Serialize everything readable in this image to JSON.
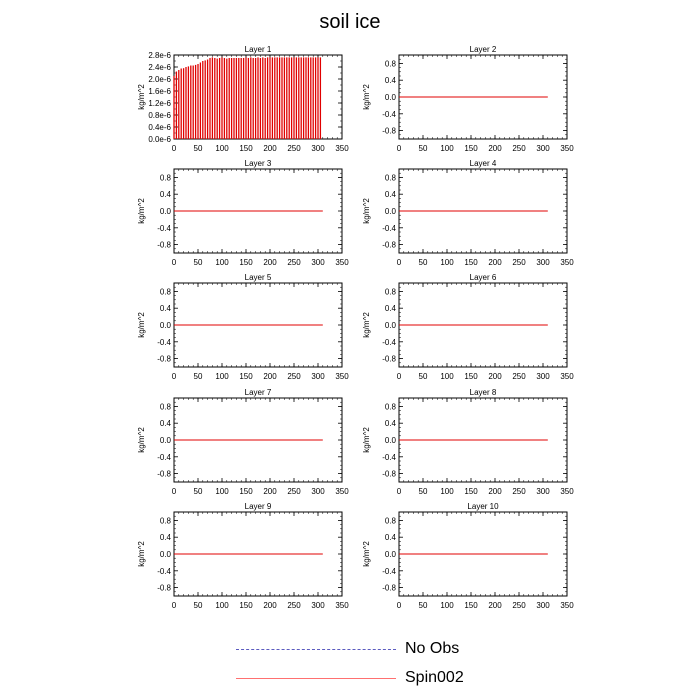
{
  "figure": {
    "title": "soil ice",
    "legend": [
      {
        "label": "No Obs",
        "color": "#5b5bc0",
        "style": "dashed"
      },
      {
        "label": "Spin002",
        "color": "#ff4040",
        "style": "solid"
      }
    ]
  },
  "chart_data": [
    {
      "type": "bar",
      "title": "Layer 1",
      "ylabel": "kg/m^2",
      "xlim": [
        0,
        350
      ],
      "ylim": [
        0.0,
        2.8e-06
      ],
      "xticks": [
        "0",
        "50",
        "100",
        "150",
        "200",
        "250",
        "300",
        "350"
      ],
      "yticks": [
        "0.0e-6",
        "0.4e-6",
        "0.8e-6",
        "1.2e-6",
        "1.6e-6",
        "2.0e-6",
        "2.4e-6",
        "2.8e-6"
      ],
      "series": [
        {
          "color": "#e00000",
          "x": [
            0,
            5,
            10,
            15,
            20,
            25,
            30,
            35,
            40,
            45,
            50,
            55,
            60,
            65,
            70,
            75,
            80,
            85,
            90,
            95,
            100,
            105,
            110,
            115,
            120,
            125,
            130,
            135,
            140,
            145,
            150,
            155,
            160,
            165,
            170,
            175,
            180,
            185,
            190,
            195,
            200,
            205,
            210,
            215,
            220,
            225,
            230,
            235,
            240,
            245,
            250,
            255,
            260,
            265,
            270,
            275,
            280,
            285,
            290,
            295,
            300,
            305
          ],
          "values": [
            2.1e-06,
            2.25e-06,
            2.3e-06,
            2.35e-06,
            2.36e-06,
            2.4e-06,
            2.42e-06,
            2.45e-06,
            2.45e-06,
            2.47e-06,
            2.5e-06,
            2.55e-06,
            2.6e-06,
            2.62e-06,
            2.65e-06,
            2.7e-06,
            2.72e-06,
            2.7e-06,
            2.68e-06,
            2.7e-06,
            2.72e-06,
            2.7e-06,
            2.68e-06,
            2.7e-06,
            2.7e-06,
            2.7e-06,
            2.7e-06,
            2.7e-06,
            2.7e-06,
            2.7e-06,
            2.72e-06,
            2.7e-06,
            2.72e-06,
            2.7e-06,
            2.7e-06,
            2.72e-06,
            2.7e-06,
            2.72e-06,
            2.7e-06,
            2.72e-06,
            2.72e-06,
            2.72e-06,
            2.72e-06,
            2.72e-06,
            2.72e-06,
            2.72e-06,
            2.72e-06,
            2.72e-06,
            2.72e-06,
            2.72e-06,
            2.72e-06,
            2.72e-06,
            2.72e-06,
            2.72e-06,
            2.72e-06,
            2.72e-06,
            2.72e-06,
            2.72e-06,
            2.72e-06,
            2.72e-06,
            2.72e-06,
            2.72e-06
          ]
        }
      ]
    },
    {
      "type": "line",
      "title": "Layer 2",
      "ylabel": "kg/m^2",
      "xlim": [
        0,
        350
      ],
      "ylim": [
        -1.0,
        1.0
      ],
      "xticks": [
        "0",
        "50",
        "100",
        "150",
        "200",
        "250",
        "300",
        "350"
      ],
      "yticks": [
        "-0.8",
        "-0.4",
        "0.0",
        "0.4",
        "0.8"
      ],
      "series": [
        {
          "color": "#e00000",
          "x": [
            0,
            310
          ],
          "values": [
            0,
            0
          ]
        }
      ]
    },
    {
      "type": "line",
      "title": "Layer 3",
      "ylabel": "kg/m^2",
      "xlim": [
        0,
        350
      ],
      "ylim": [
        -1.0,
        1.0
      ],
      "xticks": [
        "0",
        "50",
        "100",
        "150",
        "200",
        "250",
        "300",
        "350"
      ],
      "yticks": [
        "-0.8",
        "-0.4",
        "0.0",
        "0.4",
        "0.8"
      ],
      "series": [
        {
          "color": "#e00000",
          "x": [
            0,
            310
          ],
          "values": [
            0,
            0
          ]
        }
      ]
    },
    {
      "type": "line",
      "title": "Layer 4",
      "ylabel": "kg/m^2",
      "xlim": [
        0,
        350
      ],
      "ylim": [
        -1.0,
        1.0
      ],
      "xticks": [
        "0",
        "50",
        "100",
        "150",
        "200",
        "250",
        "300",
        "350"
      ],
      "yticks": [
        "-0.8",
        "-0.4",
        "0.0",
        "0.4",
        "0.8"
      ],
      "series": [
        {
          "color": "#e00000",
          "x": [
            0,
            310
          ],
          "values": [
            0,
            0
          ]
        }
      ]
    },
    {
      "type": "line",
      "title": "Layer 5",
      "ylabel": "kg/m^2",
      "xlim": [
        0,
        350
      ],
      "ylim": [
        -1.0,
        1.0
      ],
      "xticks": [
        "0",
        "50",
        "100",
        "150",
        "200",
        "250",
        "300",
        "350"
      ],
      "yticks": [
        "-0.8",
        "-0.4",
        "0.0",
        "0.4",
        "0.8"
      ],
      "series": [
        {
          "color": "#e00000",
          "x": [
            0,
            310
          ],
          "values": [
            0,
            0
          ]
        }
      ]
    },
    {
      "type": "line",
      "title": "Layer 6",
      "ylabel": "kg/m^2",
      "xlim": [
        0,
        350
      ],
      "ylim": [
        -1.0,
        1.0
      ],
      "xticks": [
        "0",
        "50",
        "100",
        "150",
        "200",
        "250",
        "300",
        "350"
      ],
      "yticks": [
        "-0.8",
        "-0.4",
        "0.0",
        "0.4",
        "0.8"
      ],
      "series": [
        {
          "color": "#e00000",
          "x": [
            0,
            310
          ],
          "values": [
            0,
            0
          ]
        }
      ]
    },
    {
      "type": "line",
      "title": "Layer 7",
      "ylabel": "kg/m^2",
      "xlim": [
        0,
        350
      ],
      "ylim": [
        -1.0,
        1.0
      ],
      "xticks": [
        "0",
        "50",
        "100",
        "150",
        "200",
        "250",
        "300",
        "350"
      ],
      "yticks": [
        "-0.8",
        "-0.4",
        "0.0",
        "0.4",
        "0.8"
      ],
      "series": [
        {
          "color": "#e00000",
          "x": [
            0,
            310
          ],
          "values": [
            0,
            0
          ]
        }
      ]
    },
    {
      "type": "line",
      "title": "Layer 8",
      "ylabel": "kg/m^2",
      "xlim": [
        0,
        350
      ],
      "ylim": [
        -1.0,
        1.0
      ],
      "xticks": [
        "0",
        "50",
        "100",
        "150",
        "200",
        "250",
        "300",
        "350"
      ],
      "yticks": [
        "-0.8",
        "-0.4",
        "0.0",
        "0.4",
        "0.8"
      ],
      "series": [
        {
          "color": "#e00000",
          "x": [
            0,
            310
          ],
          "values": [
            0,
            0
          ]
        }
      ]
    },
    {
      "type": "line",
      "title": "Layer 9",
      "ylabel": "kg/m^2",
      "xlim": [
        0,
        350
      ],
      "ylim": [
        -1.0,
        1.0
      ],
      "xticks": [
        "0",
        "50",
        "100",
        "150",
        "200",
        "250",
        "300",
        "350"
      ],
      "yticks": [
        "-0.8",
        "-0.4",
        "0.0",
        "0.4",
        "0.8"
      ],
      "series": [
        {
          "color": "#e00000",
          "x": [
            0,
            310
          ],
          "values": [
            0,
            0
          ]
        }
      ]
    },
    {
      "type": "line",
      "title": "Layer 10",
      "ylabel": "kg/m^2",
      "xlim": [
        0,
        350
      ],
      "ylim": [
        -1.0,
        1.0
      ],
      "xticks": [
        "0",
        "50",
        "100",
        "150",
        "200",
        "250",
        "300",
        "350"
      ],
      "yticks": [
        "-0.8",
        "-0.4",
        "0.0",
        "0.4",
        "0.8"
      ],
      "series": [
        {
          "color": "#e00000",
          "x": [
            0,
            310
          ],
          "values": [
            0,
            0
          ]
        }
      ]
    }
  ]
}
